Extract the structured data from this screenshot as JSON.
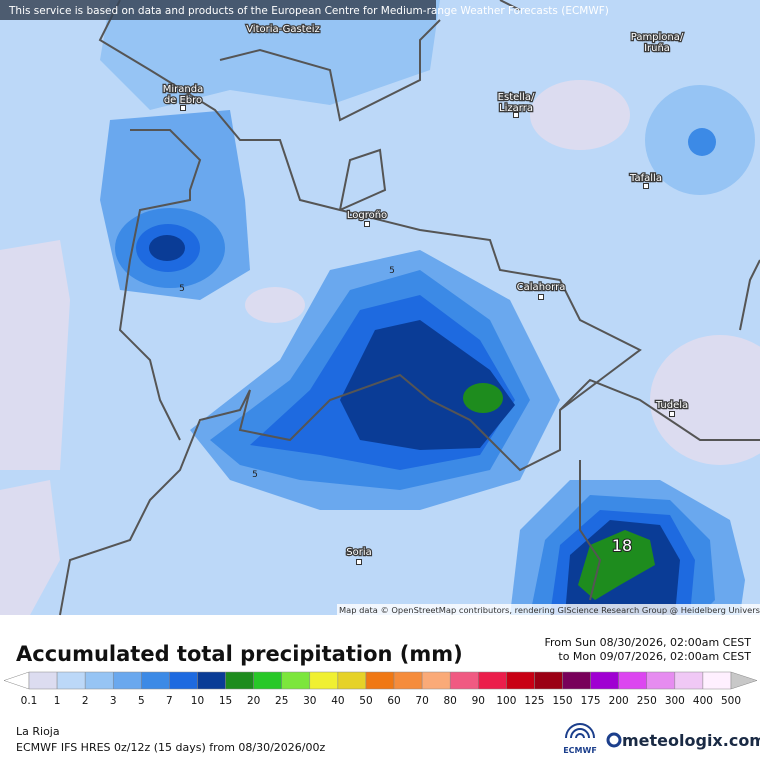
{
  "attribution": "This service is based on data and products of the European Centre for Medium-range Weather Forecasts (ECMWF)",
  "map_credit": "Map data © OpenStreetMap contributors, rendering GIScience Research Group @ Heidelberg University",
  "cities": [
    {
      "lines": [
        "Vitoria-Gasteiz"
      ]
    },
    {
      "lines": [
        "Pamplona/",
        "Iruña"
      ]
    },
    {
      "lines": [
        "Miranda",
        "de Ebro"
      ]
    },
    {
      "lines": [
        "Estella/",
        "Lizarra"
      ]
    },
    {
      "lines": [
        "Tafalla"
      ]
    },
    {
      "lines": [
        "Logroño"
      ]
    },
    {
      "lines": [
        "Calahorra"
      ]
    },
    {
      "lines": [
        "Tudela"
      ]
    },
    {
      "lines": [
        "Soria"
      ]
    }
  ],
  "contour_labels": [
    "5",
    "5",
    "5",
    "18"
  ],
  "title": "Accumulated total precipitation (mm)",
  "period_from": "From Sun 08/30/2026, 02:00am CEST",
  "period_to": "to Mon 09/07/2026, 02:00am CEST",
  "legend": {
    "labels": [
      0.1,
      1,
      2,
      3,
      5,
      7,
      10,
      15,
      20,
      25,
      30,
      40,
      50,
      60,
      70,
      80,
      90,
      100,
      125,
      150,
      175,
      200,
      250,
      300,
      400,
      500
    ],
    "colors": [
      "#ffffff",
      "#dcdcf0",
      "#bcd8f8",
      "#96c4f4",
      "#6aa8ee",
      "#3c8ae6",
      "#1e6ae0",
      "#0a3c96",
      "#1e8c1e",
      "#28c828",
      "#7ce63c",
      "#f0f032",
      "#e6d228",
      "#f07814",
      "#f58c3c",
      "#faaa78",
      "#f05a82",
      "#eb1e4b",
      "#c80014",
      "#9b0014",
      "#78005a",
      "#a000d2",
      "#dc46f0",
      "#e68cf0",
      "#f0c8f5",
      "#fff0ff",
      "#c8c8c8"
    ]
  },
  "region": "La Rioja",
  "model": "ECMWF IFS HRES 0z/12z (15 days) from 08/30/2026/00z",
  "logo_ecmwf": "ECMWF",
  "logo_site": "meteologix.com"
}
